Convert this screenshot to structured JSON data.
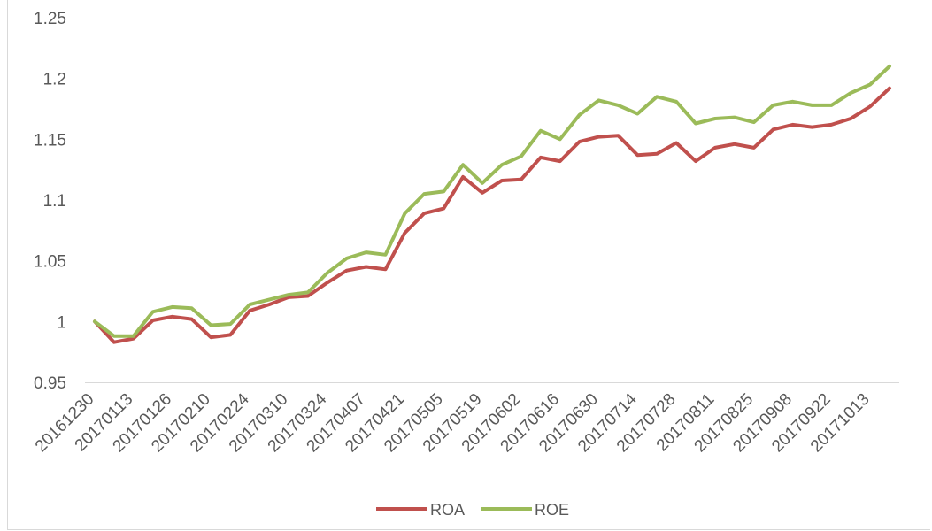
{
  "chart_data": {
    "type": "line",
    "title": "",
    "xlabel": "",
    "ylabel": "",
    "ylim": [
      0.95,
      1.25
    ],
    "yticks": [
      "0.95",
      "1",
      "1.05",
      "1.1",
      "1.15",
      "1.2",
      "1.25"
    ],
    "grid": false,
    "legend_position": "bottom",
    "x_tick_labels": [
      "20161230",
      "20170113",
      "20170126",
      "20170210",
      "20170224",
      "20170310",
      "20170324",
      "20170407",
      "20170421",
      "20170505",
      "20170519",
      "20170602",
      "20170616",
      "20170630",
      "20170714",
      "20170728",
      "20170811",
      "20170825",
      "20170908",
      "20170922",
      "20171013"
    ],
    "x": [
      "20161230",
      "20170106",
      "20170113",
      "20170120",
      "20170126",
      "20170203",
      "20170210",
      "20170217",
      "20170224",
      "20170303",
      "20170310",
      "20170317",
      "20170324",
      "20170331",
      "20170407",
      "20170414",
      "20170421",
      "20170428",
      "20170505",
      "20170512",
      "20170519",
      "20170526",
      "20170602",
      "20170609",
      "20170616",
      "20170623",
      "20170630",
      "20170707",
      "20170714",
      "20170721",
      "20170728",
      "20170804",
      "20170811",
      "20170818",
      "20170825",
      "20170901",
      "20170908",
      "20170915",
      "20170922",
      "20170929",
      "20171013",
      "20171020"
    ],
    "series": [
      {
        "name": "ROA",
        "color": "#c0504d",
        "values": [
          1.0,
          0.983,
          0.986,
          1.001,
          1.004,
          1.002,
          0.987,
          0.989,
          1.009,
          1.014,
          1.02,
          1.021,
          1.032,
          1.042,
          1.045,
          1.043,
          1.073,
          1.089,
          1.093,
          1.119,
          1.106,
          1.116,
          1.117,
          1.135,
          1.132,
          1.148,
          1.152,
          1.153,
          1.137,
          1.138,
          1.147,
          1.132,
          1.143,
          1.146,
          1.143,
          1.158,
          1.162,
          1.16,
          1.162,
          1.167,
          1.177,
          1.192
        ]
      },
      {
        "name": "ROE",
        "color": "#9bbb59",
        "values": [
          1.0,
          0.988,
          0.988,
          1.008,
          1.012,
          1.011,
          0.997,
          0.998,
          1.014,
          1.018,
          1.022,
          1.024,
          1.04,
          1.052,
          1.057,
          1.055,
          1.089,
          1.105,
          1.107,
          1.129,
          1.114,
          1.129,
          1.136,
          1.157,
          1.15,
          1.17,
          1.182,
          1.178,
          1.171,
          1.185,
          1.181,
          1.163,
          1.167,
          1.168,
          1.164,
          1.178,
          1.181,
          1.178,
          1.178,
          1.188,
          1.195,
          1.21
        ]
      }
    ]
  }
}
